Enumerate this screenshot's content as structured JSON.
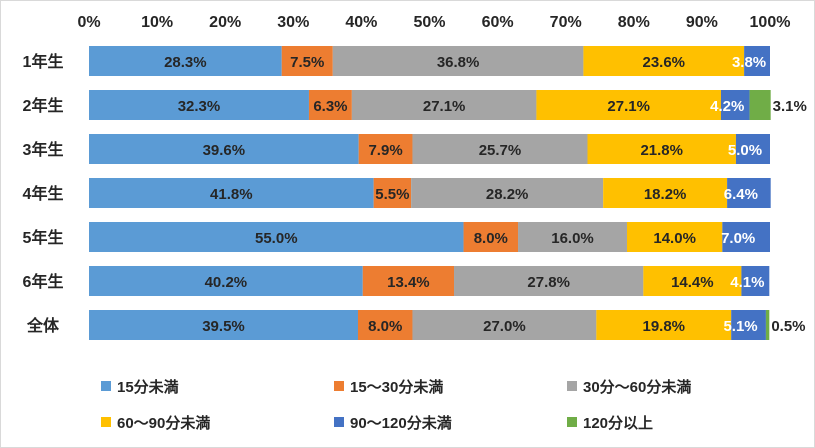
{
  "chart_data": {
    "type": "bar",
    "orientation": "horizontal",
    "stacked": true,
    "percent_stacked": true,
    "title": "",
    "xlabel": "",
    "ylabel": "",
    "xlim": [
      0,
      100
    ],
    "x_ticks": [
      "0%",
      "10%",
      "20%",
      "30%",
      "40%",
      "50%",
      "60%",
      "70%",
      "80%",
      "90%",
      "100%"
    ],
    "grid": false,
    "legend_position": "bottom",
    "categories": [
      "1年生",
      "2年生",
      "3年生",
      "4年生",
      "5年生",
      "6年生",
      "全体"
    ],
    "series": [
      {
        "name": "15分未満",
        "color": "#5b9bd5",
        "values": [
          28.3,
          32.3,
          39.6,
          41.8,
          55.0,
          40.2,
          39.5
        ],
        "labels": [
          "28.3%",
          "32.3%",
          "39.6%",
          "41.8%",
          "55.0%",
          "40.2%",
          "39.5%"
        ]
      },
      {
        "name": "15～30分未満",
        "color": "#ed7d31",
        "values": [
          7.5,
          6.3,
          7.9,
          5.5,
          8.0,
          13.4,
          8.0
        ],
        "labels": [
          "7.5%",
          "6.3%",
          "7.9%",
          "5.5%",
          "8.0%",
          "13.4%",
          "8.0%"
        ]
      },
      {
        "name": "30分～60分未満",
        "color": "#a5a5a5",
        "values": [
          36.8,
          27.1,
          25.7,
          28.2,
          16.0,
          27.8,
          27.0
        ],
        "labels": [
          "36.8%",
          "27.1%",
          "25.7%",
          "28.2%",
          "16.0%",
          "27.8%",
          "27.0%"
        ]
      },
      {
        "name": "60～90分未満",
        "color": "#ffc000",
        "values": [
          23.6,
          27.1,
          21.8,
          18.2,
          14.0,
          14.4,
          19.8
        ],
        "labels": [
          "23.6%",
          "27.1%",
          "21.8%",
          "18.2%",
          "14.0%",
          "14.4%",
          "19.8%"
        ]
      },
      {
        "name": "90～120分未満",
        "color": "#4472c4",
        "values": [
          3.8,
          4.2,
          5.0,
          6.4,
          7.0,
          4.1,
          5.1
        ],
        "labels": [
          "3.8%",
          "4.2%",
          "5.0%",
          "6.4%",
          "7.0%",
          "4.1%",
          "5.1%"
        ]
      },
      {
        "name": "120分以上",
        "color": "#70ad47",
        "values": [
          0,
          3.1,
          0,
          0,
          0,
          0,
          0.5
        ],
        "labels": [
          "",
          "3.1%",
          "",
          "",
          "",
          "",
          "0.5%"
        ]
      }
    ]
  }
}
